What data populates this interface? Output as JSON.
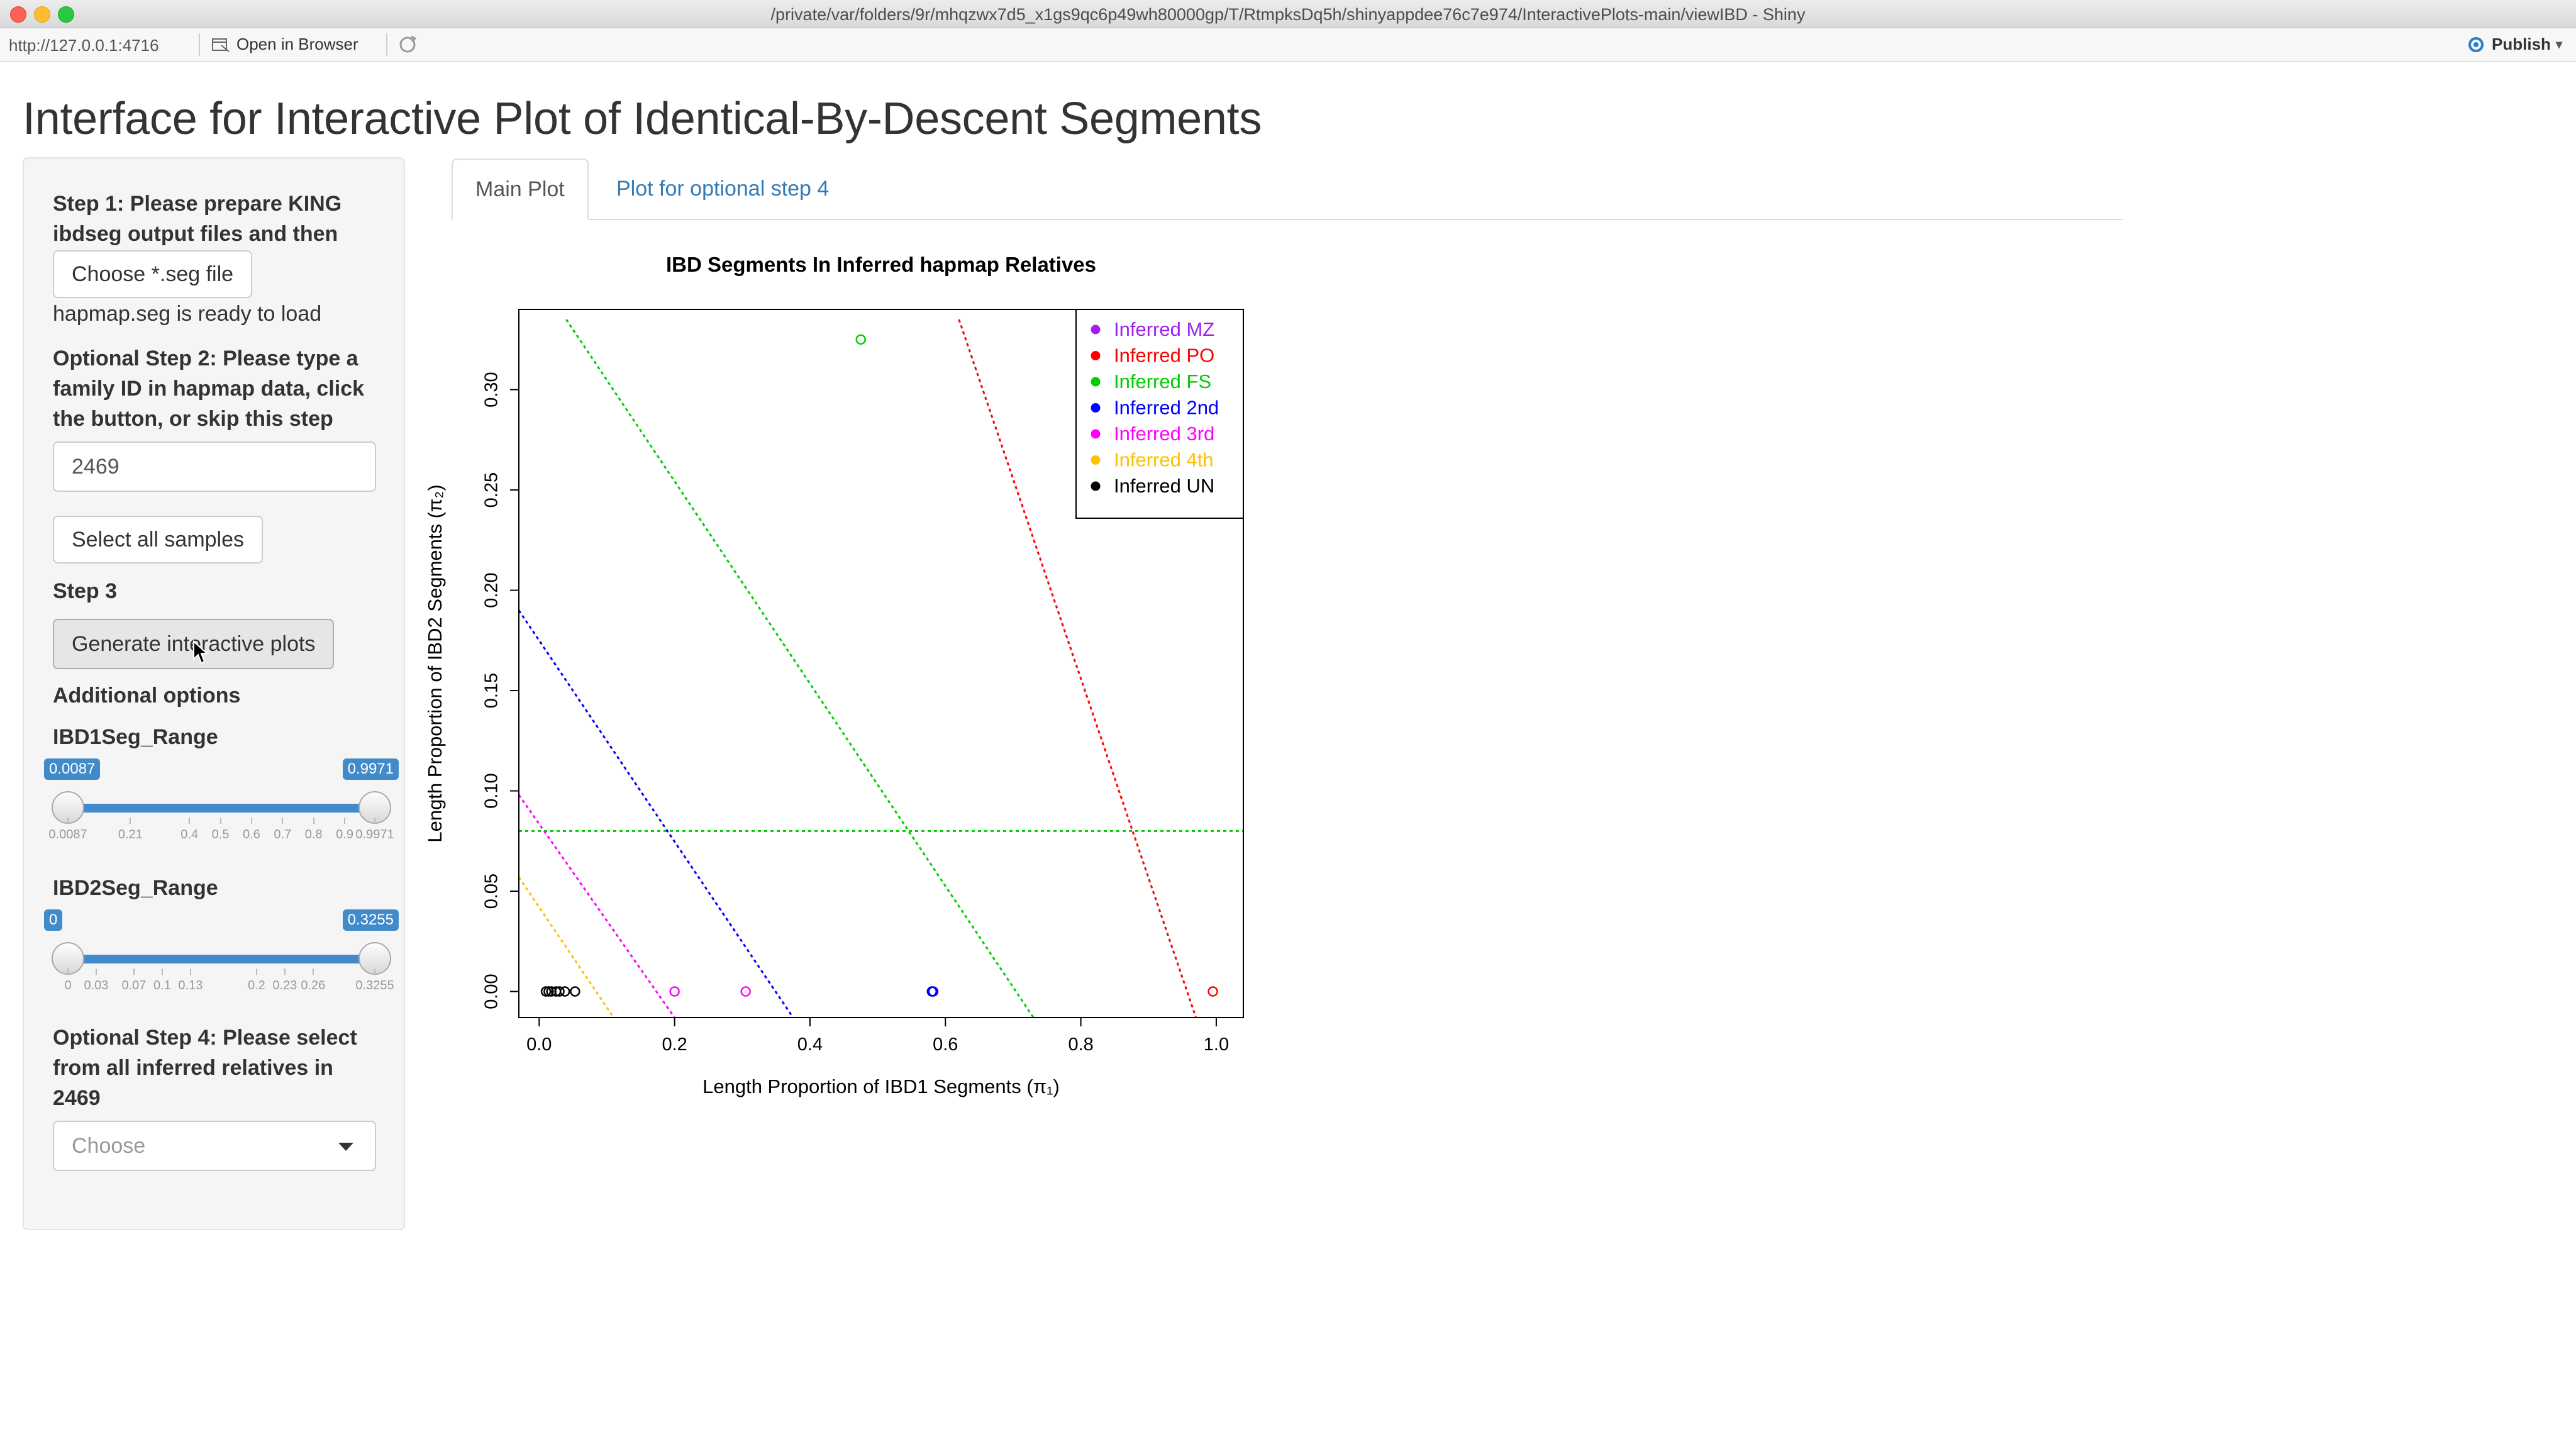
{
  "window": {
    "title": "/private/var/folders/9r/mhqzwx7d5_x1gs9qc6p49wh80000gp/T/RtmpksDq5h/shinyappdee76c7e974/InteractivePlots-main/viewIBD - Shiny"
  },
  "toolbar": {
    "url": "http://127.0.0.1:4716",
    "open_in_browser": "Open in Browser",
    "publish": "Publish"
  },
  "page": {
    "title": "Interface for Interactive Plot of Identical-By-Descent Segments"
  },
  "sidebar": {
    "step1_label": "Step 1: Please prepare KING ibdseg output files and then",
    "step1_button": "Choose *.seg file",
    "step1_status": "hapmap.seg is ready to load",
    "step2_label": "Optional Step 2: Please type a family ID in hapmap data, click the button, or skip this step",
    "step2_value": "2469",
    "step2_button": "Select all samples",
    "step3_label": "Step 3",
    "step3_button": "Generate interactive plots",
    "additional_label": "Additional options",
    "ibd1_slider": {
      "label": "IBD1Seg_Range",
      "from_label": "0.0087",
      "to_label": "0.9971",
      "from": 0.0087,
      "to": 0.9971,
      "grid": [
        "0.0087",
        "0.21",
        "0.4",
        "0.5",
        "0.6",
        "0.7",
        "0.8",
        "0.9",
        "0.9971"
      ]
    },
    "ibd2_slider": {
      "label": "IBD2Seg_Range",
      "from_label": "0",
      "to_label": "0.3255",
      "from": 0,
      "to": 0.3255,
      "grid": [
        "0",
        "0.03",
        "0.07",
        "0.1",
        "0.13",
        "0.2",
        "0.23",
        "0.26",
        "0.3255"
      ]
    },
    "step4_label": "Optional Step 4: Please select from all inferred relatives in 2469",
    "step4_placeholder": "Choose"
  },
  "tabs": [
    {
      "label": "Main Plot",
      "active": true
    },
    {
      "label": "Plot for optional step 4",
      "active": false
    }
  ],
  "chart_data": {
    "type": "scatter",
    "title": "IBD Segments In Inferred hapmap Relatives",
    "xlabel": "Length Proportion of IBD1 Segments (π₁)",
    "ylabel": "Length Proportion of IBD2 Segments (π₂)",
    "xlim": [
      -0.03,
      1.04
    ],
    "ylim": [
      -0.013,
      0.34
    ],
    "xticks": [
      "0.0",
      "0.2",
      "0.4",
      "0.6",
      "0.8",
      "1.0"
    ],
    "yticks": [
      "0.00",
      "0.05",
      "0.10",
      "0.15",
      "0.20",
      "0.25",
      "0.30"
    ],
    "legend_position": "top-right",
    "legend": [
      {
        "name": "Inferred MZ",
        "color": "#a020f0"
      },
      {
        "name": "Inferred PO",
        "color": "#ff0000"
      },
      {
        "name": "Inferred FS",
        "color": "#00cc00"
      },
      {
        "name": "Inferred 2nd",
        "color": "#0000ff"
      },
      {
        "name": "Inferred 3rd",
        "color": "#ff00ff"
      },
      {
        "name": "Inferred 4th",
        "color": "#ffc000"
      },
      {
        "name": "Inferred UN",
        "color": "#000000"
      }
    ],
    "reference_lines": [
      {
        "color": "#00cc00",
        "points": [
          [
            0.04,
            0.335
          ],
          [
            0.73,
            -0.013
          ]
        ]
      },
      {
        "color": "#ff0000",
        "points": [
          [
            0.62,
            0.335
          ],
          [
            0.97,
            -0.013
          ]
        ]
      },
      {
        "color": "#00cc00",
        "points": [
          [
            -0.03,
            0.08
          ],
          [
            1.04,
            0.08
          ]
        ]
      },
      {
        "color": "#0000ff",
        "points": [
          [
            -0.03,
            0.19
          ],
          [
            0.375,
            -0.013
          ]
        ]
      },
      {
        "color": "#ff00ff",
        "points": [
          [
            -0.03,
            0.098
          ],
          [
            0.2,
            -0.013
          ]
        ]
      },
      {
        "color": "#ffc000",
        "points": [
          [
            -0.03,
            0.057
          ],
          [
            0.11,
            -0.013
          ]
        ]
      }
    ],
    "points": [
      {
        "x": 0.475,
        "y": 0.325,
        "color": "#00cc00"
      },
      {
        "x": 0.995,
        "y": 0.0,
        "color": "#ff0000"
      },
      {
        "x": 0.58,
        "y": 0.0,
        "color": "#0000ff"
      },
      {
        "x": 0.582,
        "y": 0.0,
        "color": "#0000ff"
      },
      {
        "x": 0.2,
        "y": 0.0,
        "color": "#ff00ff"
      },
      {
        "x": 0.305,
        "y": 0.0,
        "color": "#ff00ff"
      },
      {
        "x": 0.01,
        "y": 0.0,
        "color": "#000000"
      },
      {
        "x": 0.014,
        "y": 0.0,
        "color": "#000000"
      },
      {
        "x": 0.018,
        "y": 0.0,
        "color": "#000000"
      },
      {
        "x": 0.025,
        "y": 0.0,
        "color": "#000000"
      },
      {
        "x": 0.03,
        "y": 0.0,
        "color": "#000000"
      },
      {
        "x": 0.038,
        "y": 0.0,
        "color": "#000000"
      },
      {
        "x": 0.053,
        "y": 0.0,
        "color": "#000000"
      }
    ]
  }
}
